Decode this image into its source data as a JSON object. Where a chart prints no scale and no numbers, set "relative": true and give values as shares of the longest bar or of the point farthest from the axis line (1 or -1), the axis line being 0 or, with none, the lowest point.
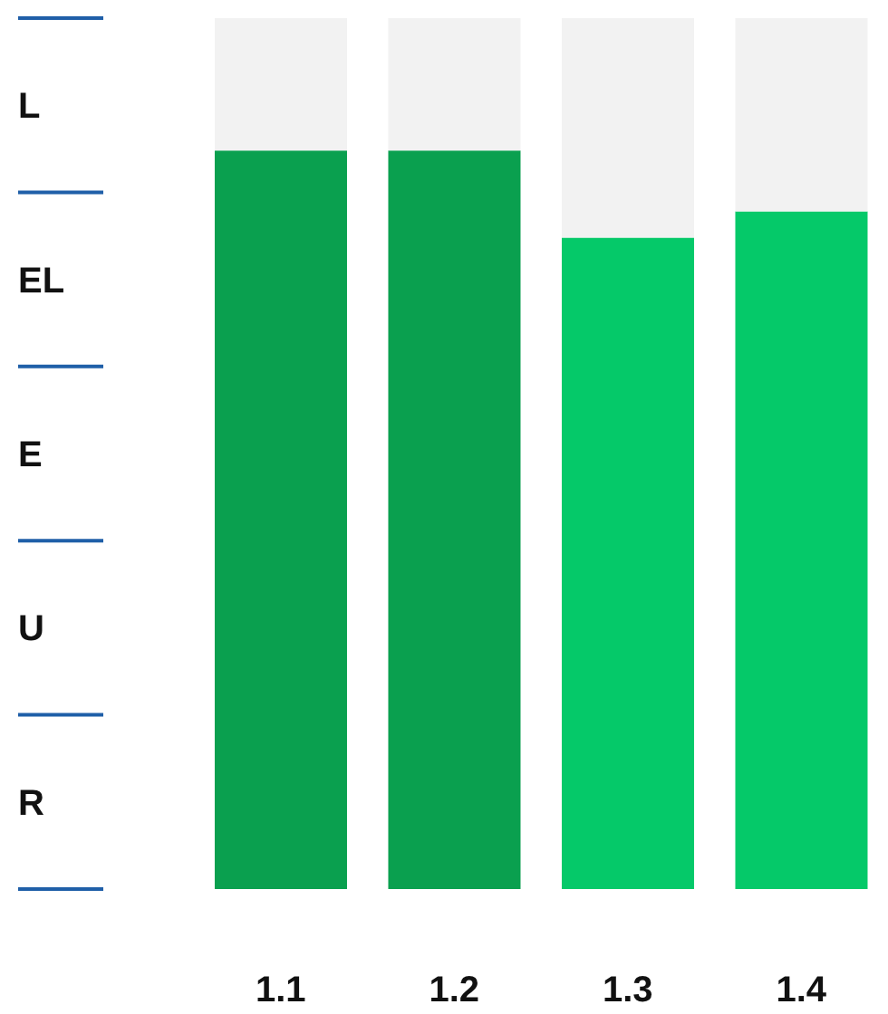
{
  "chart_data": {
    "type": "bar",
    "stacked": true,
    "relative": true,
    "categories": [
      "1.1",
      "1.2",
      "1.3",
      "1.4"
    ],
    "series": [
      {
        "colors": [
          "#0aa04f",
          "#0aa04f",
          "#05c969",
          "#05c969"
        ],
        "color": "#0aa04f",
        "values": [
          0.848,
          0.848,
          0.748,
          0.778
        ]
      },
      {
        "color": "#f2f2f2",
        "values": [
          0.152,
          0.152,
          0.252,
          0.222
        ]
      }
    ],
    "annotations": [
      "R",
      "U",
      "E",
      "EL",
      "L"
    ],
    "grid": false,
    "legend": false
  }
}
